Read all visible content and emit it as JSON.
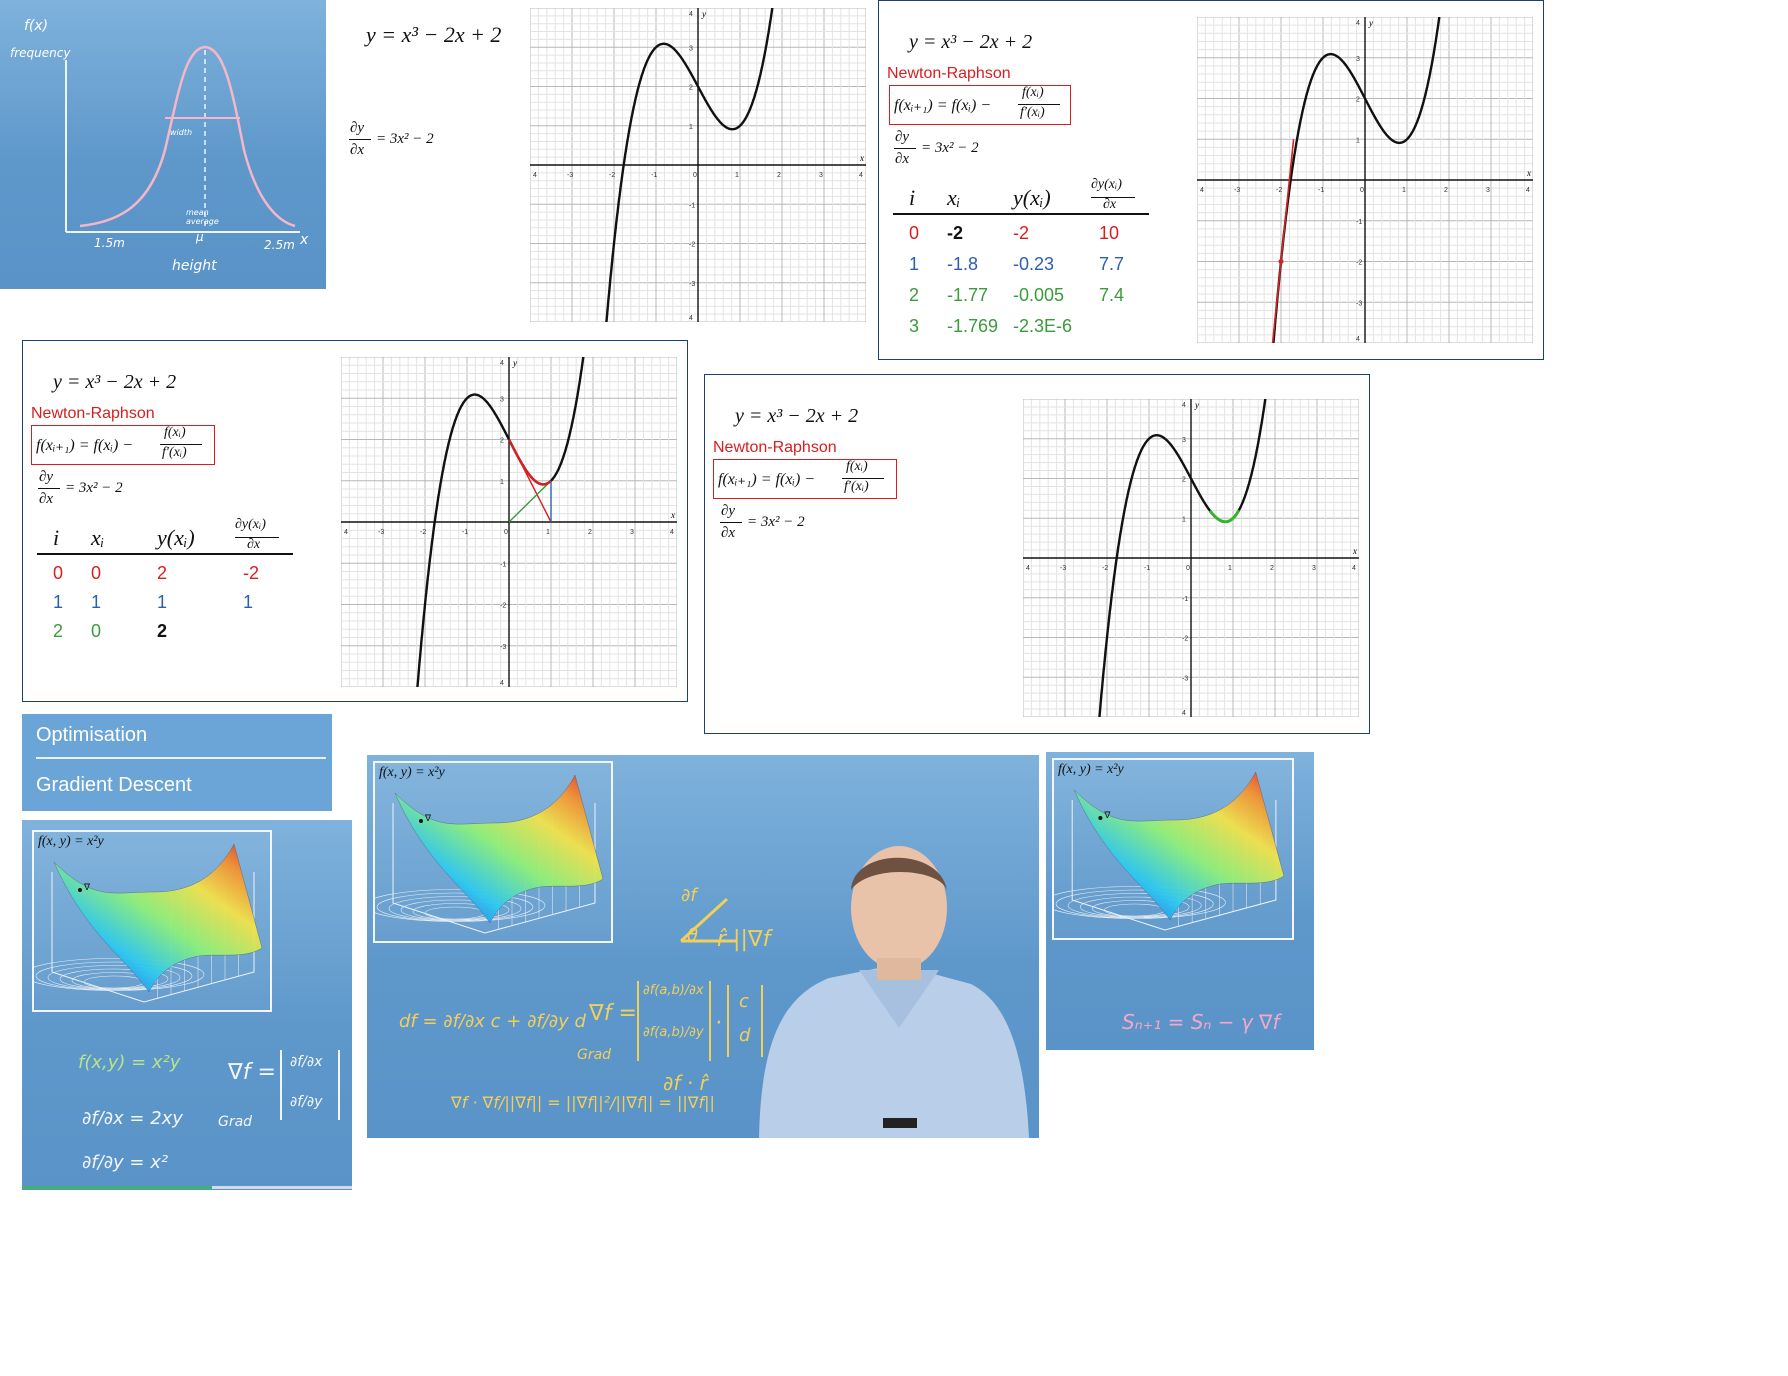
{
  "boards": {
    "normal_dist": {
      "fx": "f(x)",
      "ylabel": "frequency",
      "sigma_label": "width",
      "mean_label": "mean average",
      "mu": "μ",
      "left_tick": "1.5m",
      "right_tick": "2.5m",
      "x_axis": "x",
      "xlabel": "height"
    }
  },
  "nr": {
    "function": "y = x³ − 2x + 2",
    "derivative": "= 3x² − 2",
    "dy": "∂y",
    "dx": "∂x",
    "method": "Newton-Raphson",
    "formula_left": "f(xᵢ₊₁) = f(xᵢ) −",
    "formula_num": "f(xᵢ)",
    "formula_den": "f′(xᵢ)",
    "col_i": "i",
    "col_x": "xᵢ",
    "col_y": "y(xᵢ)",
    "col_d_num": "∂y(xᵢ)",
    "col_d_den": "∂x",
    "axis_x": "x",
    "axis_y": "y",
    "ticks_x": [
      "4",
      "-3",
      "-2",
      "-1",
      "0",
      "1",
      "2",
      "3",
      "4"
    ],
    "ticks_y": [
      "4",
      "3",
      "2",
      "1",
      "-1",
      "-2",
      "-3",
      "4"
    ],
    "table_a": [
      {
        "i": "0",
        "x": "-2",
        "y": "-2",
        "d": "10"
      },
      {
        "i": "1",
        "x": "-1.8",
        "y": "-0.23",
        "d": "7.7"
      },
      {
        "i": "2",
        "x": "-1.77",
        "y": "-0.005",
        "d": "7.4"
      },
      {
        "i": "3",
        "x": "-1.769",
        "y": "-2.3E-6",
        "d": ""
      }
    ],
    "table_b": [
      {
        "i": "0",
        "x": "0",
        "y": "2",
        "d": "-2"
      },
      {
        "i": "1",
        "x": "1",
        "y": "1",
        "d": "1"
      },
      {
        "i": "2",
        "x": "0",
        "y": "2",
        "d": ""
      }
    ]
  },
  "menu": {
    "item1": "Optimisation",
    "item2": "Gradient Descent"
  },
  "gradient": {
    "surface_title": "f(x, y) = x²y",
    "grad_label": "∇",
    "left_notes": {
      "line1": "f(x,y) = x²y",
      "line2": "∂f/∂x = 2xy",
      "line3": "∂f/∂y = x²",
      "grad": "∇f =",
      "grad_sub": "Grad",
      "grad_top": "∂f/∂x",
      "grad_bot": "∂f/∂y"
    },
    "video_notes": {
      "df_arrow": "∂f",
      "theta": "θ",
      "rhat_norm": "r̂  ||∇f",
      "df_line": "df = ∂f/∂x c + ∂f/∂y d",
      "grad_line": "∇f =",
      "grad_sub": "Grad",
      "grad_top": "∂f(a,b)/∂x",
      "grad_bot": "∂f(a,b)/∂y",
      "vec_top": "c",
      "vec_bot": "d",
      "dot": "·",
      "proj_line": "∇f · ∇f/||∇f|| = ||∇f||²/||∇f|| = ||∇f||",
      "df_rhat": "∂f  ·  r̂"
    },
    "right_notes": {
      "update": "Sₙ₊₁ = Sₙ − γ ∇f"
    }
  },
  "colors": {
    "panel_border": "#1f3f73",
    "red": "#d62020",
    "blue": "#2c5fb0",
    "green": "#3a9b3a",
    "board_blue": "#6aa3d4",
    "pen_yellow": "#f1cf5c",
    "pen_pink": "#f3a8c8"
  }
}
